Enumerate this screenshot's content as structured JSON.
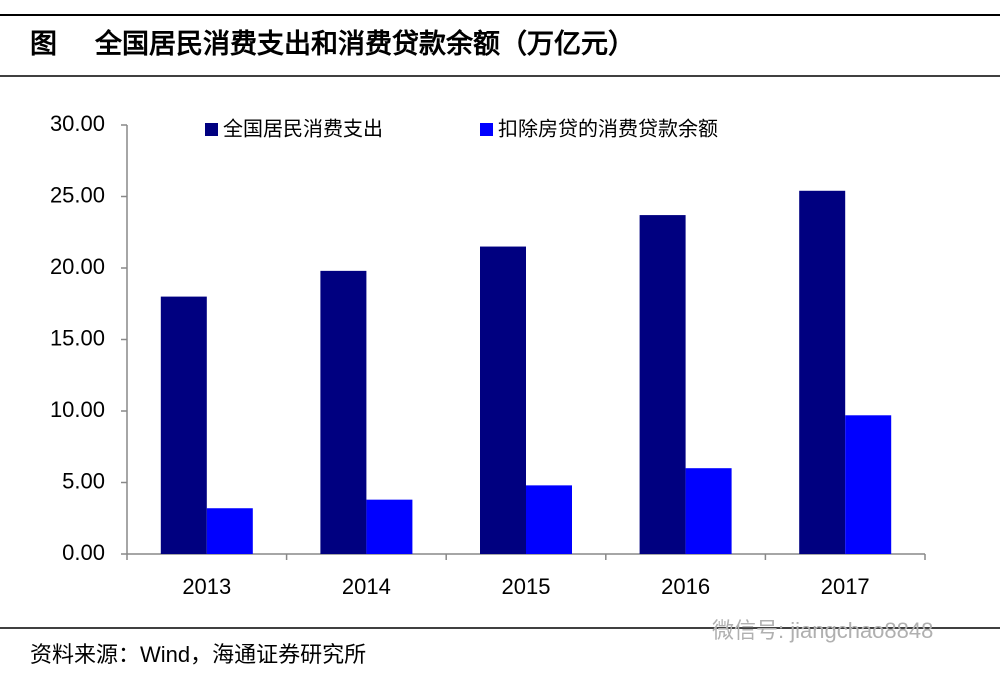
{
  "chart_data": {
    "type": "bar",
    "figure_label": "图",
    "title": "全国居民消费支出和消费贷款余额（万亿元）",
    "categories": [
      "2013",
      "2014",
      "2015",
      "2016",
      "2017"
    ],
    "series": [
      {
        "name": "全国居民消费支出",
        "color": "#000080",
        "values": [
          18.0,
          19.8,
          21.5,
          23.7,
          25.4
        ]
      },
      {
        "name": "扣除房贷的消费贷款余额",
        "color": "#0000ff",
        "values": [
          3.2,
          3.8,
          4.8,
          6.0,
          9.7
        ]
      }
    ],
    "ylim": [
      0,
      30
    ],
    "yticks": [
      {
        "value": 0,
        "label": "0.00"
      },
      {
        "value": 5,
        "label": "5.00"
      },
      {
        "value": 10,
        "label": "10.00"
      },
      {
        "value": 15,
        "label": "15.00"
      },
      {
        "value": 20,
        "label": "20.00"
      },
      {
        "value": 25,
        "label": "25.00"
      },
      {
        "value": 30,
        "label": "30.00"
      }
    ],
    "grid": false,
    "legend": "top",
    "source": "资料来源：Wind，海通证券研究所",
    "watermark": "微信号: jiangchao8848"
  }
}
